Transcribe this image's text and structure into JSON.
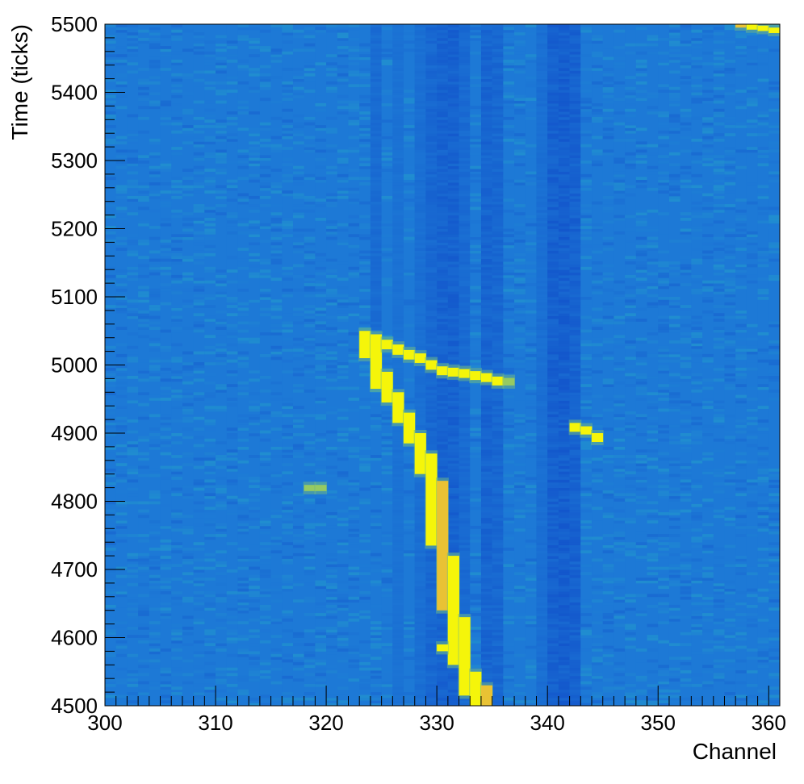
{
  "chart_data": {
    "type": "heatmap",
    "xlabel": "Channel",
    "ylabel": "Time (ticks)",
    "xlim": [
      300,
      361
    ],
    "ylim": [
      4500,
      5500
    ],
    "x_ticks": [
      300,
      310,
      320,
      330,
      340,
      350,
      360
    ],
    "y_ticks": [
      4500,
      4600,
      4700,
      4800,
      4900,
      5000,
      5100,
      5200,
      5300,
      5400,
      5500
    ],
    "colors": {
      "background": "#1d79d6",
      "low": "#1357cc",
      "mid": "#2196cd",
      "high": "#f5f50a",
      "orange": "#e3a64a"
    },
    "dark_channels": [
      {
        "channel": 324,
        "level": 0.45,
        "t_min": 5050,
        "t_max": 5500
      },
      {
        "channel": 326,
        "level": 0.25
      },
      {
        "channel": 328,
        "level": 0.35
      },
      {
        "channel": 329,
        "level": 0.6
      },
      {
        "channel": 330,
        "level": 0.75
      },
      {
        "channel": 331,
        "level": 0.8
      },
      {
        "channel": 332,
        "level": 0.5
      },
      {
        "channel": 334,
        "level": 0.7
      },
      {
        "channel": 335,
        "level": 0.6
      },
      {
        "channel": 339,
        "level": 0.35
      },
      {
        "channel": 340,
        "level": 0.85
      },
      {
        "channel": 341,
        "level": 0.9
      },
      {
        "channel": 342,
        "level": 0.8
      }
    ],
    "hits": [
      {
        "channel": 323,
        "t_start": 5010,
        "t_end": 5050,
        "value": 1.0
      },
      {
        "channel": 324,
        "t_start": 4965,
        "t_end": 5045,
        "value": 1.0
      },
      {
        "channel": 325,
        "t_start": 4945,
        "t_end": 4990,
        "value": 1.0
      },
      {
        "channel": 326,
        "t_start": 4915,
        "t_end": 4960,
        "value": 1.0
      },
      {
        "channel": 327,
        "t_start": 4885,
        "t_end": 4930,
        "value": 1.0
      },
      {
        "channel": 328,
        "t_start": 4840,
        "t_end": 4900,
        "value": 1.0
      },
      {
        "channel": 329,
        "t_start": 4735,
        "t_end": 4870,
        "value": 1.0
      },
      {
        "channel": 330,
        "t_start": 4640,
        "t_end": 4830,
        "value": 0.85
      },
      {
        "channel": 331,
        "t_start": 4560,
        "t_end": 4720,
        "value": 1.0
      },
      {
        "channel": 332,
        "t_start": 4515,
        "t_end": 4630,
        "value": 1.0
      },
      {
        "channel": 333,
        "t_start": 4500,
        "t_end": 4550,
        "value": 1.0
      },
      {
        "channel": 334,
        "t_start": 4500,
        "t_end": 4530,
        "value": 0.9
      },
      {
        "channel": 330,
        "t_start": 4580,
        "t_end": 4590,
        "value": 1.0
      },
      {
        "channel": 325,
        "t_start": 5023,
        "t_end": 5037,
        "value": 1.0
      },
      {
        "channel": 326,
        "t_start": 5015,
        "t_end": 5030,
        "value": 1.0
      },
      {
        "channel": 327,
        "t_start": 5008,
        "t_end": 5022,
        "value": 1.0
      },
      {
        "channel": 328,
        "t_start": 5003,
        "t_end": 5017,
        "value": 1.0
      },
      {
        "channel": 329,
        "t_start": 4993,
        "t_end": 5007,
        "value": 1.0
      },
      {
        "channel": 330,
        "t_start": 4985,
        "t_end": 4998,
        "value": 1.0
      },
      {
        "channel": 331,
        "t_start": 4983,
        "t_end": 4996,
        "value": 1.0
      },
      {
        "channel": 332,
        "t_start": 4981,
        "t_end": 4994,
        "value": 1.0
      },
      {
        "channel": 333,
        "t_start": 4978,
        "t_end": 4991,
        "value": 1.0
      },
      {
        "channel": 334,
        "t_start": 4975,
        "t_end": 4988,
        "value": 1.0
      },
      {
        "channel": 335,
        "t_start": 4970,
        "t_end": 4983,
        "value": 1.0
      },
      {
        "channel": 336,
        "t_start": 4970,
        "t_end": 4981,
        "value": 0.55
      },
      {
        "channel": 342,
        "t_start": 4902,
        "t_end": 4915,
        "value": 1.0
      },
      {
        "channel": 343,
        "t_start": 4898,
        "t_end": 4910,
        "value": 1.0
      },
      {
        "channel": 344,
        "t_start": 4887,
        "t_end": 4900,
        "value": 1.0
      },
      {
        "channel": 318,
        "t_start": 4815,
        "t_end": 4824,
        "value": 0.55
      },
      {
        "channel": 319,
        "t_start": 4815,
        "t_end": 4824,
        "value": 0.55
      },
      {
        "channel": 357,
        "t_start": 5495,
        "t_end": 5500,
        "value": 0.9
      },
      {
        "channel": 358,
        "t_start": 5492,
        "t_end": 5500,
        "value": 1.0
      },
      {
        "channel": 359,
        "t_start": 5490,
        "t_end": 5498,
        "value": 1.0
      },
      {
        "channel": 360,
        "t_start": 5487,
        "t_end": 5495,
        "value": 1.0
      }
    ]
  }
}
